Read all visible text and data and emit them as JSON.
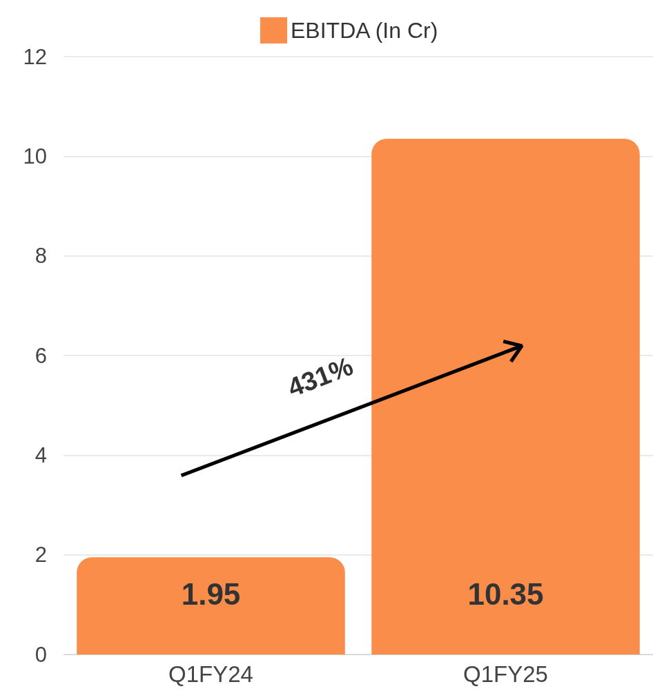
{
  "chart_data": {
    "type": "bar",
    "categories": [
      "Q1FY24",
      "Q1FY25"
    ],
    "series": [
      {
        "name": "EBITDA (In Cr)",
        "color": "#fb8d4b",
        "values": [
          1.95,
          10.35
        ]
      }
    ],
    "ylim": [
      0,
      12
    ],
    "yticks": [
      0,
      2,
      4,
      6,
      8,
      10,
      12
    ],
    "grid": "y",
    "legend": "top",
    "data_labels": true,
    "annotations": [
      "431%"
    ]
  }
}
